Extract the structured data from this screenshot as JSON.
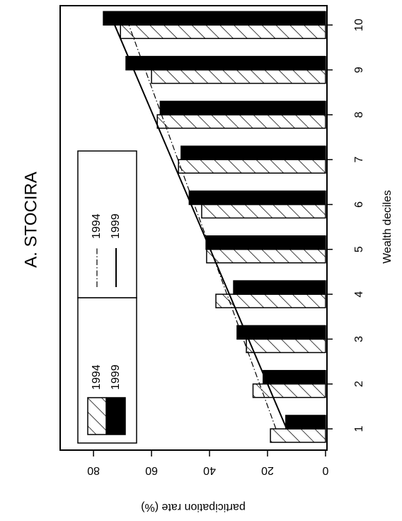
{
  "chart_data": {
    "type": "bar",
    "title": "A. STOCIRA",
    "xlabel": "Wealth deciles",
    "ylabel": "participation rate (%)",
    "categories": [
      "1",
      "2",
      "3",
      "4",
      "5",
      "6",
      "7",
      "8",
      "9",
      "10"
    ],
    "series": [
      {
        "name": "1994",
        "color": "#ffffff",
        "hatch": true,
        "values": [
          19,
          25,
          27.3,
          37.8,
          41,
          42.7,
          50.7,
          58,
          60,
          70.7
        ]
      },
      {
        "name": "1999",
        "color": "#000000",
        "hatch": false,
        "values": [
          13.7,
          21.5,
          30.5,
          31.7,
          41.2,
          47,
          49.8,
          57,
          68.8,
          76.6
        ]
      }
    ],
    "trend_lines": {
      "x": [
        1,
        10
      ],
      "series": [
        {
          "name": "1994",
          "style": "dashdot",
          "values": [
            17.1,
            67.8
          ]
        },
        {
          "name": "1999",
          "style": "solid",
          "values": [
            13.4,
            72.7
          ]
        }
      ]
    },
    "ylim": [
      -0.5,
      91.5
    ],
    "yticks": [
      0,
      20,
      40,
      60,
      80
    ],
    "rotation": -90
  }
}
